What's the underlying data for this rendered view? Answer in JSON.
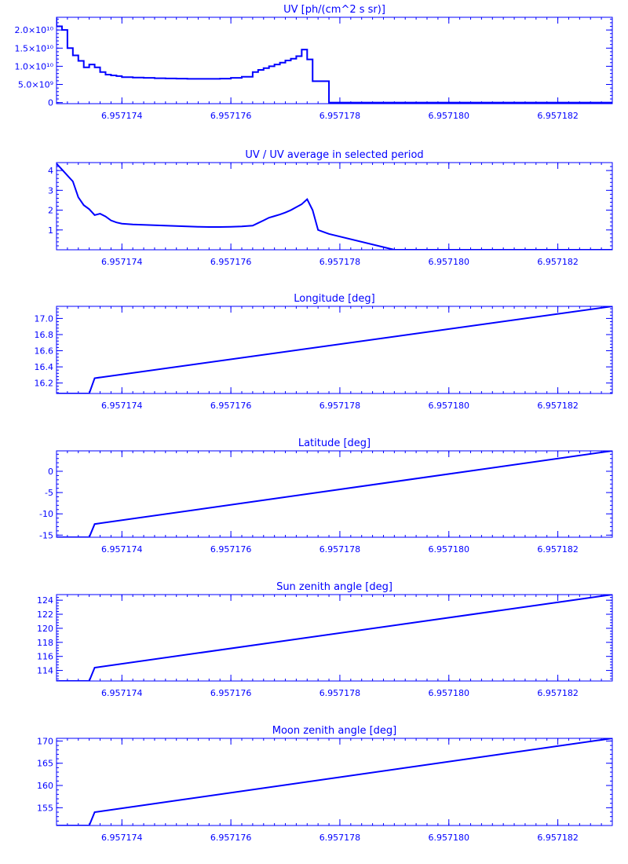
{
  "colors": {
    "foreground": "#0000ff",
    "background": "#ffffff"
  },
  "chart_data": [
    {
      "type": "line",
      "step": true,
      "title": "UV [ph/(cm^2 s sr)]",
      "xlim": [
        6.9571728,
        6.957183
      ],
      "ylim": [
        -300000000,
        23500000000
      ],
      "xticks": [
        6.957174,
        6.957176,
        6.957178,
        6.95718,
        6.957182
      ],
      "xticklabels": [
        "6.957174",
        "6.957176",
        "6.957178",
        "6.957180",
        "6.957182"
      ],
      "yticks": [
        0,
        5000000000,
        10000000000,
        15000000000,
        20000000000
      ],
      "yticklabels": [
        "0",
        "5.0×10⁹",
        "1.0×10¹⁰",
        "1.5×10¹⁰",
        "2.0×10¹⁰"
      ],
      "x": [
        6.9571728,
        6.9571729,
        6.957173,
        6.9571731,
        6.9571732,
        6.9571733,
        6.9571734,
        6.9571735,
        6.9571736,
        6.9571737,
        6.9571738,
        6.9571739,
        6.957174,
        6.9571742,
        6.9571744,
        6.9571746,
        6.9571748,
        6.957175,
        6.9571752,
        6.9571754,
        6.9571756,
        6.9571758,
        6.957176,
        6.9571762,
        6.9571764,
        6.9571765,
        6.9571766,
        6.9571767,
        6.9571768,
        6.9571769,
        6.957177,
        6.9571771,
        6.9571772,
        6.9571773,
        6.9571774,
        6.9571775,
        6.9571776,
        6.9571777,
        6.9571778,
        6.9571784,
        6.957183
      ],
      "y": [
        23500000000,
        21000000000,
        20000000000,
        15000000000,
        13000000000,
        11500000000,
        9700000000,
        10500000000,
        9700000000,
        8400000000,
        7700000000,
        7500000000,
        7300000000,
        7000000000,
        6900000000,
        6800000000,
        6700000000,
        6650000000,
        6600000000,
        6550000000,
        6550000000,
        6550000000,
        6600000000,
        6800000000,
        7100000000,
        8400000000,
        9000000000,
        9500000000,
        10000000000,
        10500000000,
        11000000000,
        11600000000,
        12100000000,
        12800000000,
        14600000000,
        11900000000,
        5900000000,
        5900000000,
        5900000000,
        0,
        0
      ]
    },
    {
      "type": "line",
      "title": "UV / UV average in selected period",
      "xlim": [
        6.9571728,
        6.957183
      ],
      "ylim": [
        0,
        4.4
      ],
      "xticks": [
        6.957174,
        6.957176,
        6.957178,
        6.95718,
        6.957182
      ],
      "xticklabels": [
        "6.957174",
        "6.957176",
        "6.957178",
        "6.957180",
        "6.957182"
      ],
      "yticks": [
        1,
        2,
        3,
        4
      ],
      "yticklabels": [
        "1",
        "2",
        "3",
        "4"
      ],
      "x": [
        6.9571728,
        6.9571729,
        6.957173,
        6.9571731,
        6.9571732,
        6.9571733,
        6.9571734,
        6.9571735,
        6.9571736,
        6.9571737,
        6.9571738,
        6.9571739,
        6.957174,
        6.9571742,
        6.9571744,
        6.9571746,
        6.9571748,
        6.957175,
        6.9571752,
        6.9571754,
        6.9571756,
        6.9571758,
        6.957176,
        6.9571762,
        6.9571764,
        6.9571765,
        6.9571766,
        6.9571767,
        6.9571768,
        6.9571769,
        6.957177,
        6.9571771,
        6.9571772,
        6.9571773,
        6.9571774,
        6.9571775,
        6.9571776,
        6.9571777,
        6.9571778,
        6.957179,
        6.957183
      ],
      "y": [
        4.35,
        4.05,
        3.75,
        3.45,
        2.65,
        2.25,
        2.05,
        1.75,
        1.82,
        1.68,
        1.48,
        1.38,
        1.32,
        1.28,
        1.26,
        1.24,
        1.22,
        1.2,
        1.18,
        1.16,
        1.15,
        1.15,
        1.16,
        1.18,
        1.22,
        1.35,
        1.48,
        1.62,
        1.7,
        1.78,
        1.88,
        2.0,
        2.15,
        2.3,
        2.55,
        2.0,
        1.0,
        0.9,
        0.8,
        0.0,
        0.0
      ]
    },
    {
      "type": "line",
      "title": "Longitude [deg]",
      "xlim": [
        6.9571728,
        6.957183
      ],
      "ylim": [
        16.07,
        17.15
      ],
      "xticks": [
        6.957174,
        6.957176,
        6.957178,
        6.95718,
        6.957182
      ],
      "xticklabels": [
        "6.957174",
        "6.957176",
        "6.957178",
        "6.957180",
        "6.957182"
      ],
      "yticks": [
        16.2,
        16.4,
        16.6,
        16.8,
        17.0
      ],
      "yticklabels": [
        "16.2",
        "16.4",
        "16.6",
        "16.8",
        "17.0"
      ],
      "x": [
        6.9571728,
        6.9571734,
        6.9571735,
        6.957183
      ],
      "y": [
        16.07,
        16.07,
        16.26,
        17.15
      ]
    },
    {
      "type": "line",
      "title": "Latitude [deg]",
      "xlim": [
        6.9571728,
        6.957183
      ],
      "ylim": [
        -15.5,
        4.8
      ],
      "xticks": [
        6.957174,
        6.957176,
        6.957178,
        6.95718,
        6.957182
      ],
      "xticklabels": [
        "6.957174",
        "6.957176",
        "6.957178",
        "6.957180",
        "6.957182"
      ],
      "yticks": [
        -15,
        -10,
        -5,
        0
      ],
      "yticklabels": [
        "-15",
        "-10",
        "-5",
        "0"
      ],
      "x": [
        6.9571728,
        6.9571734,
        6.9571735,
        6.957183
      ],
      "y": [
        -15.5,
        -15.5,
        -12.4,
        4.8
      ]
    },
    {
      "type": "line",
      "title": "Sun zenith angle [deg]",
      "xlim": [
        6.9571728,
        6.957183
      ],
      "ylim": [
        112.5,
        124.8
      ],
      "xticks": [
        6.957174,
        6.957176,
        6.957178,
        6.95718,
        6.957182
      ],
      "xticklabels": [
        "6.957174",
        "6.957176",
        "6.957178",
        "6.957180",
        "6.957182"
      ],
      "yticks": [
        114,
        116,
        118,
        120,
        122,
        124
      ],
      "yticklabels": [
        "114",
        "116",
        "118",
        "120",
        "122",
        "124"
      ],
      "x": [
        6.9571728,
        6.9571734,
        6.9571735,
        6.957183
      ],
      "y": [
        112.5,
        112.5,
        114.4,
        124.8
      ]
    },
    {
      "type": "line",
      "title": "Moon zenith angle [deg]",
      "xlim": [
        6.9571728,
        6.957183
      ],
      "ylim": [
        151.0,
        170.6
      ],
      "xticks": [
        6.957174,
        6.957176,
        6.957178,
        6.95718,
        6.957182
      ],
      "xticklabels": [
        "6.957174",
        "6.957176",
        "6.957178",
        "6.957180",
        "6.957182"
      ],
      "yticks": [
        155,
        160,
        165,
        170
      ],
      "yticklabels": [
        "155",
        "160",
        "165",
        "170"
      ],
      "x": [
        6.9571728,
        6.9571734,
        6.9571735,
        6.957183
      ],
      "y": [
        151.0,
        151.0,
        154.0,
        170.6
      ]
    }
  ]
}
